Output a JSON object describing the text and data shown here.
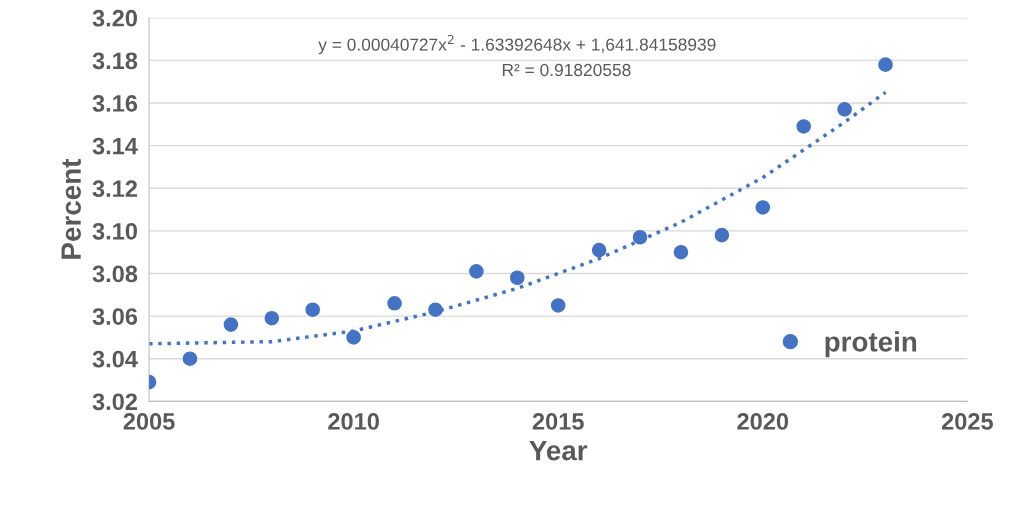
{
  "chart_data": {
    "type": "scatter",
    "xlabel": "Year",
    "ylabel": "Percent",
    "x": [
      2005,
      2006,
      2007,
      2008,
      2009,
      2010,
      2011,
      2012,
      2013,
      2014,
      2015,
      2016,
      2017,
      2018,
      2019,
      2020,
      2021,
      2022,
      2023
    ],
    "series": [
      {
        "name": "protein",
        "color": "#4472c4",
        "marker": "circle",
        "values": [
          3.029,
          3.04,
          3.056,
          3.059,
          3.063,
          3.05,
          3.066,
          3.063,
          3.081,
          3.078,
          3.065,
          3.091,
          3.097,
          3.09,
          3.098,
          3.111,
          3.149,
          3.157,
          3.178
        ]
      },
      {
        "color": "#4472c4",
        "type": "line",
        "line_style": "dotted",
        "x": [
          2005,
          2008,
          2010,
          2012,
          2014,
          2016,
          2018,
          2020,
          2022,
          2023
        ],
        "values": [
          3.047,
          3.048,
          3.053,
          3.062,
          3.073,
          3.087,
          3.104,
          3.125,
          3.151,
          3.165
        ]
      }
    ],
    "annotations": [
      "y = 0.00040727x$^{2}$ - 1.63392648x + 1,641.84158939",
      "R² = 0.91820558"
    ],
    "xlim": [
      2005,
      2025
    ],
    "xticks": [
      2005,
      2010,
      2015,
      2020,
      2025
    ],
    "ylim": [
      3.02,
      3.2
    ],
    "yticks": [
      {
        "value": 3.02,
        "label": "3.02"
      },
      {
        "value": 3.04,
        "label": "3.04"
      },
      {
        "value": 3.06,
        "label": "3.06"
      },
      {
        "value": 3.08,
        "label": "3.08"
      },
      {
        "value": 3.1,
        "label": "3.10"
      },
      {
        "value": 3.12,
        "label": "3.12"
      },
      {
        "value": 3.14,
        "label": "3.14"
      },
      {
        "value": 3.16,
        "label": "3.16"
      },
      {
        "value": 3.18,
        "label": "3.18"
      },
      {
        "value": 3.2,
        "label": "3.20"
      }
    ],
    "grid": "y",
    "legend": "bottom right"
  }
}
